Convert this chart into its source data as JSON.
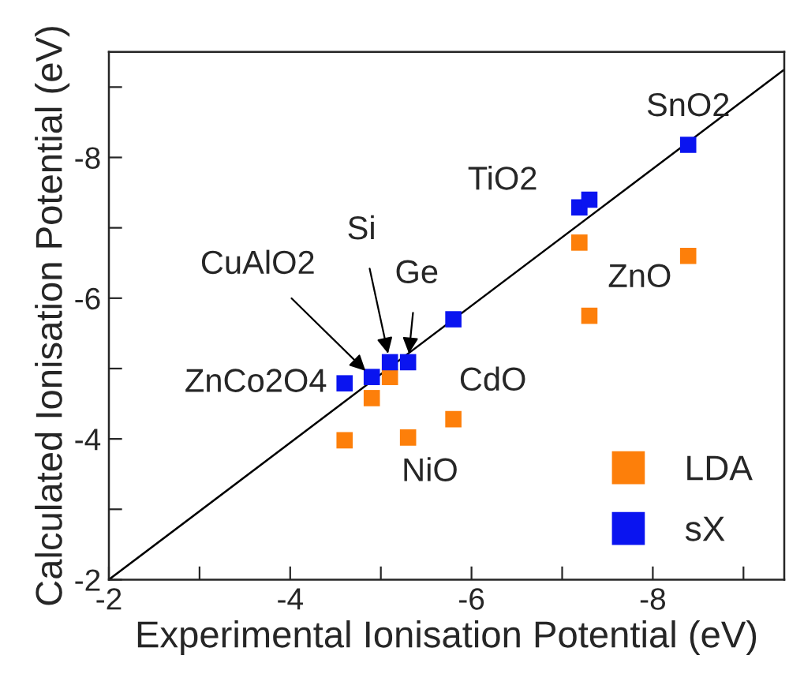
{
  "chart_data": {
    "type": "scatter",
    "xlabel": "Experimental Ionisation Potential (eV)",
    "ylabel": "Calculated Ionisation Potential (eV)",
    "xlim": [
      -2,
      -9.45
    ],
    "ylim": [
      -2,
      -9.5
    ],
    "xticks": [
      -2,
      {
        "value": -3,
        "label": null
      },
      -4,
      {
        "value": -5,
        "label": null
      },
      -6,
      {
        "value": -7,
        "label": null
      },
      -8,
      {
        "value": -9,
        "label": null
      }
    ],
    "yticks": [
      -2,
      {
        "value": -3,
        "label": null
      },
      -4,
      {
        "value": -5,
        "label": null
      },
      -6,
      {
        "value": -7,
        "label": null
      },
      -8,
      {
        "value": -9,
        "label": null
      }
    ],
    "marker": "square",
    "grid": false,
    "legend": "bottom right",
    "series": [
      {
        "name": "LDA",
        "color": "#fd7f0a",
        "x": [
          -7.19,
          -8.39,
          -7.3,
          -5.1,
          -4.9,
          -5.8,
          -4.6,
          -5.3
        ],
        "values": [
          -6.79,
          -6.6,
          -5.75,
          -4.88,
          -4.58,
          -4.28,
          -3.98,
          -4.02
        ]
      },
      {
        "name": "sX",
        "color": "#0a14f0",
        "x": [
          -4.6,
          -4.9,
          -5.1,
          -5.3,
          -5.8,
          -7.19,
          -7.3,
          -8.39
        ],
        "values": [
          -4.79,
          -4.88,
          -5.09,
          -5.09,
          -5.7,
          -7.29,
          -7.4,
          -8.18
        ]
      },
      {
        "type": "line",
        "marker": "none",
        "color": "#000000",
        "x": [
          -2,
          -9.44
        ],
        "values": [
          -2,
          -9.24
        ]
      }
    ],
    "annotations": [
      {
        "text": "SnO2",
        "x": -8.39,
        "y": -8.18
      },
      {
        "text": "TiO2",
        "x": -7.19,
        "y": -7.29
      },
      {
        "text": "ZnO",
        "x": -7.3,
        "y": -5.75
      },
      {
        "text": "CdO",
        "x": -5.8,
        "y": -4.28
      },
      {
        "text": "NiO",
        "x": -5.3,
        "y": -4.02
      },
      {
        "text": "ZnCo2O4",
        "x": -4.6,
        "y": -4.79
      },
      {
        "text": "CuAlO2",
        "x": -4.9,
        "y": -4.88
      },
      {
        "text": "Si",
        "x": -5.1,
        "y": -5.09
      },
      {
        "text": "Ge",
        "x": -5.3,
        "y": -5.09
      }
    ]
  }
}
